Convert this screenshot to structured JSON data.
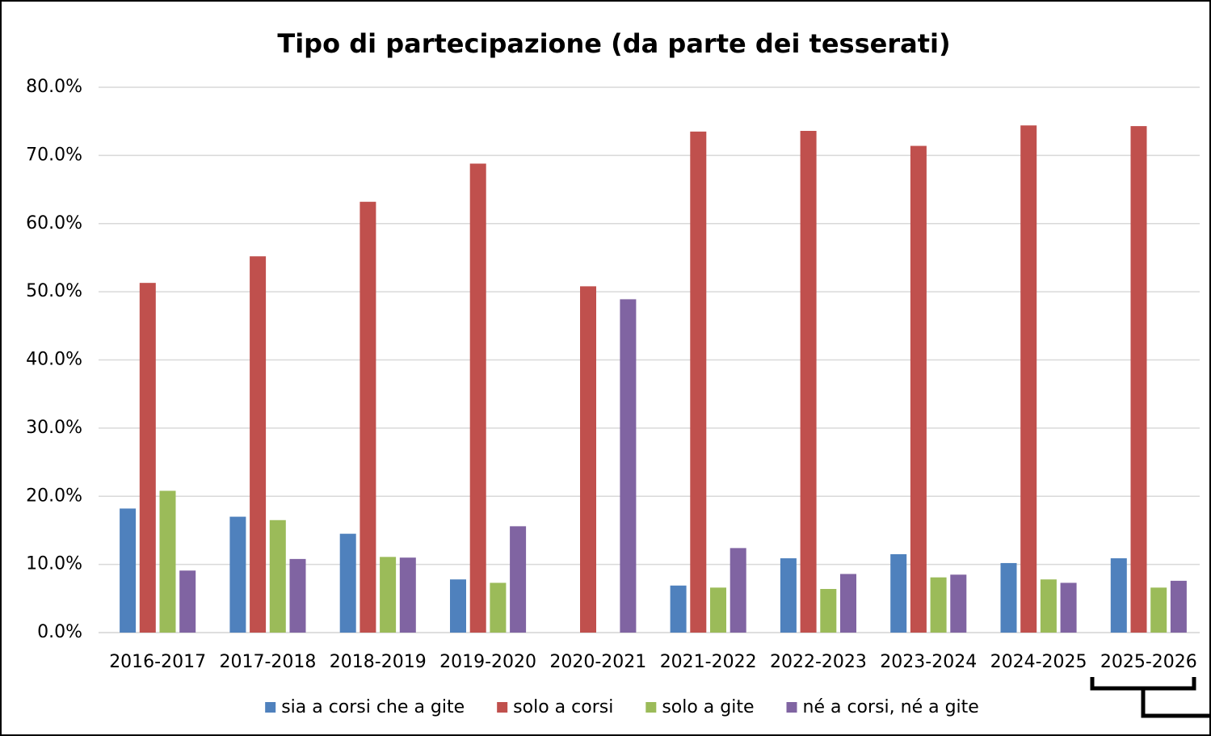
{
  "chart_data": {
    "type": "bar",
    "title": "Tipo di partecipazione (da parte dei tesserati)",
    "categories": [
      "2016-2017",
      "2017-2018",
      "2018-2019",
      "2019-2020",
      "2020-2021",
      "2021-2022",
      "2022-2023",
      "2023-2024",
      "2024-2025",
      "2025-2026"
    ],
    "series": [
      {
        "name": "sia a corsi che a gite",
        "color": "#4f81bd",
        "values": [
          18.2,
          17.0,
          14.5,
          7.8,
          0,
          6.9,
          10.9,
          11.5,
          10.2,
          10.9
        ]
      },
      {
        "name": "solo a corsi",
        "color": "#c0504d",
        "values": [
          51.3,
          55.2,
          63.2,
          68.8,
          50.8,
          73.5,
          73.6,
          71.4,
          74.4,
          74.3
        ]
      },
      {
        "name": "solo a gite",
        "color": "#9bbb59",
        "values": [
          20.8,
          16.5,
          11.1,
          7.3,
          0,
          6.6,
          6.4,
          8.1,
          7.8,
          6.6
        ]
      },
      {
        "name": "né a corsi, né a gite",
        "color": "#8064a2",
        "values": [
          9.1,
          10.8,
          11.0,
          15.6,
          48.9,
          12.4,
          8.6,
          8.5,
          7.3,
          7.6
        ]
      }
    ],
    "ylim": [
      0,
      80
    ],
    "yticks": [
      {
        "value": 0,
        "label": "0.0%"
      },
      {
        "value": 10,
        "label": "10.0%"
      },
      {
        "value": 20,
        "label": "20.0%"
      },
      {
        "value": 30,
        "label": "30.0%"
      },
      {
        "value": 40,
        "label": "40.0%"
      },
      {
        "value": 50,
        "label": "50.0%"
      },
      {
        "value": 60,
        "label": "60.0%"
      },
      {
        "value": 70,
        "label": "70.0%"
      },
      {
        "value": 80,
        "label": "80.0%"
      }
    ],
    "grid": true,
    "legend": "bottom"
  }
}
